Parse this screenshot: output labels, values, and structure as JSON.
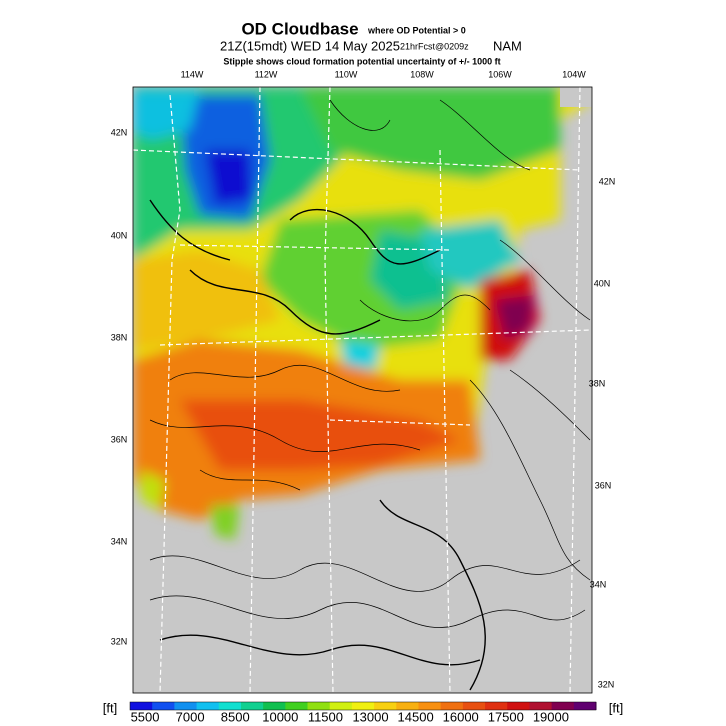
{
  "header": {
    "title": "OD Cloudbase",
    "title_note": "where OD Potential > 0",
    "valid": "21Z(15mdt) WED 14 May 2025",
    "forecast": "21hrFcst@0209z",
    "model": "NAM",
    "subtitle": "Stipple shows cloud formation potential uncertainty of +/- 1000 ft"
  },
  "map": {
    "lon_labels": [
      "114W",
      "112W",
      "110W",
      "108W",
      "106W",
      "104W"
    ],
    "lat_labels_left": [
      "42N",
      "40N",
      "38N",
      "36N",
      "34N",
      "32N"
    ],
    "lat_labels_right": [
      "42N",
      "40N",
      "38N",
      "36N",
      "34N",
      "32N"
    ]
  },
  "colorbar": {
    "unit_left": "[ft]",
    "unit_right": "[ft]",
    "ticks": [
      5500,
      7000,
      8500,
      10000,
      11500,
      13000,
      14500,
      16000,
      17500,
      19000
    ],
    "limits": [
      5000,
      20500
    ],
    "colors": [
      "#1010e0",
      "#1050f0",
      "#1090f0",
      "#10c0f0",
      "#10e0d0",
      "#10d090",
      "#10c050",
      "#40d020",
      "#90e010",
      "#d0f010",
      "#f0f010",
      "#f8d010",
      "#f8b010",
      "#f89010",
      "#f07010",
      "#e85010",
      "#e03010",
      "#d01010",
      "#b01030",
      "#800050",
      "#600070"
    ]
  }
}
